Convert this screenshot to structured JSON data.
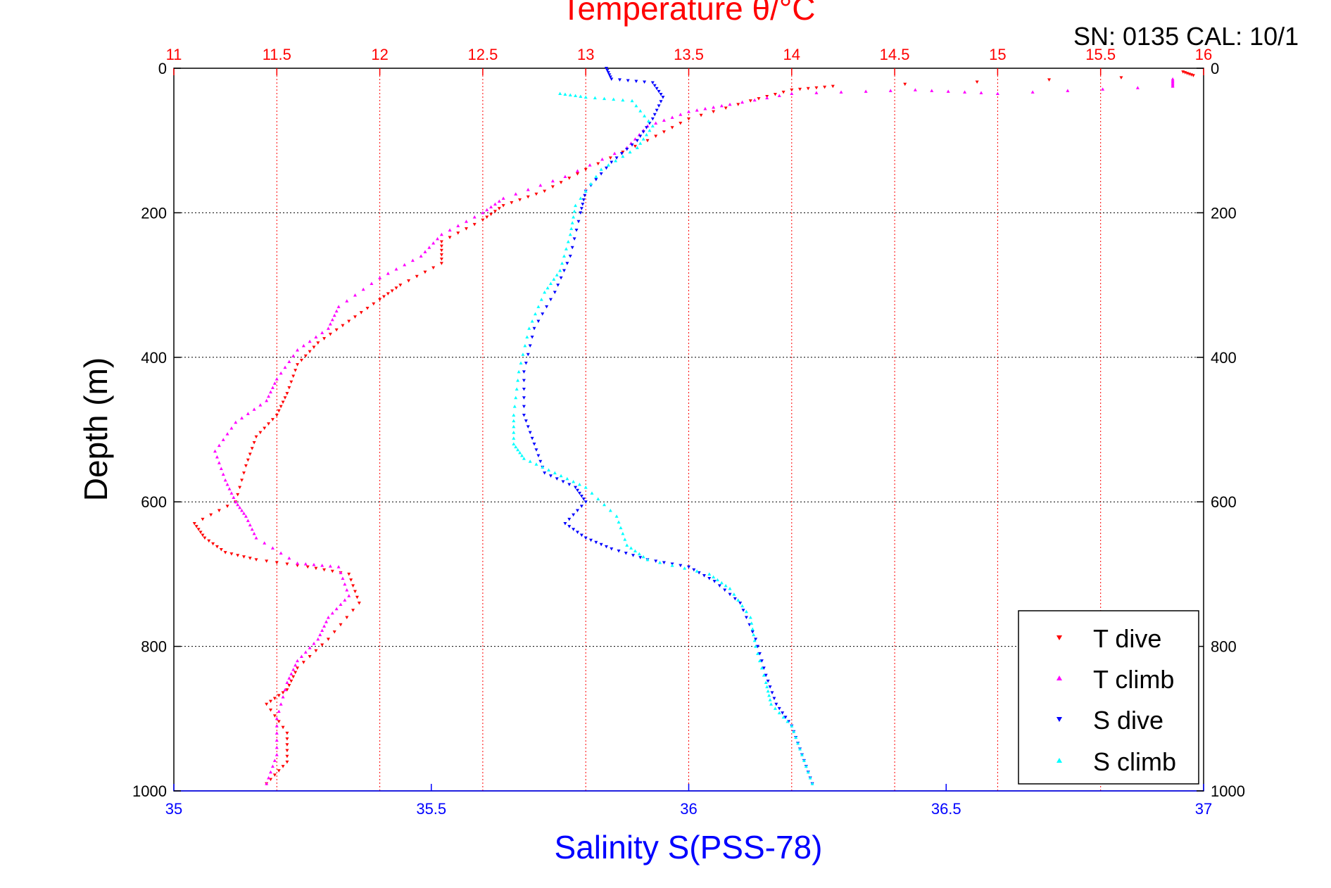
{
  "chart_data": {
    "type": "scatter",
    "title": "Temperature θ/°C",
    "header_note": "SN: 0135  CAL: 10/1",
    "xlabel": "Salinity S(PSS-78)",
    "ylabel": "Depth (m)",
    "x_salinity_range": [
      35,
      37
    ],
    "x_temperature_range": [
      11,
      16
    ],
    "depth_range": [
      0,
      1000
    ],
    "y_reversed": true,
    "grid": true,
    "legend_position": "bottom-right",
    "colors": {
      "temperature_axis": "#ff0000",
      "salinity_axis": "#0000ff",
      "t_dive": "#ff0000",
      "t_climb": "#ff00ff",
      "s_dive": "#0000ff",
      "s_climb": "#00ffff"
    },
    "x_bottom_ticks": [
      "35",
      "35.5",
      "36",
      "36.5",
      "37"
    ],
    "x_top_ticks": [
      "11",
      "11.5",
      "12",
      "12.5",
      "13",
      "13.5",
      "14",
      "14.5",
      "15",
      "15.5",
      "16"
    ],
    "y_ticks": [
      "0",
      "200",
      "400",
      "600",
      "800",
      "1000"
    ],
    "series": [
      {
        "name": "T dive",
        "axis": "temperature",
        "marker": "triangle-down",
        "points": [
          [
            15.9,
            5
          ],
          [
            15.95,
            10
          ],
          [
            14.2,
            25
          ],
          [
            14.0,
            30
          ],
          [
            13.8,
            45
          ],
          [
            13.5,
            70
          ],
          [
            13.3,
            100
          ],
          [
            13.0,
            140
          ],
          [
            12.8,
            170
          ],
          [
            12.6,
            190
          ],
          [
            12.5,
            210
          ],
          [
            12.3,
            240
          ],
          [
            12.3,
            270
          ],
          [
            12.1,
            300
          ],
          [
            12.0,
            320
          ],
          [
            11.85,
            350
          ],
          [
            11.7,
            380
          ],
          [
            11.6,
            410
          ],
          [
            11.55,
            450
          ],
          [
            11.5,
            480
          ],
          [
            11.4,
            510
          ],
          [
            11.35,
            550
          ],
          [
            11.3,
            600
          ],
          [
            11.1,
            630
          ],
          [
            11.15,
            650
          ],
          [
            11.25,
            670
          ],
          [
            11.4,
            680
          ],
          [
            11.65,
            690
          ],
          [
            11.85,
            700
          ],
          [
            11.9,
            740
          ],
          [
            11.75,
            790
          ],
          [
            11.6,
            830
          ],
          [
            11.55,
            860
          ],
          [
            11.45,
            880
          ],
          [
            11.55,
            920
          ],
          [
            11.55,
            960
          ],
          [
            11.45,
            990
          ]
        ]
      },
      {
        "name": "T climb",
        "axis": "temperature",
        "marker": "triangle-up",
        "points": [
          [
            15.85,
            15
          ],
          [
            15.85,
            25
          ],
          [
            15.0,
            35
          ],
          [
            14.6,
            30
          ],
          [
            14.0,
            35
          ],
          [
            13.7,
            50
          ],
          [
            13.5,
            60
          ],
          [
            13.3,
            80
          ],
          [
            13.2,
            110
          ],
          [
            12.9,
            150
          ],
          [
            12.6,
            180
          ],
          [
            12.5,
            200
          ],
          [
            12.3,
            230
          ],
          [
            12.2,
            260
          ],
          [
            12.0,
            290
          ],
          [
            11.8,
            330
          ],
          [
            11.75,
            360
          ],
          [
            11.6,
            390
          ],
          [
            11.5,
            430
          ],
          [
            11.45,
            460
          ],
          [
            11.3,
            490
          ],
          [
            11.2,
            530
          ],
          [
            11.25,
            570
          ],
          [
            11.3,
            600
          ],
          [
            11.35,
            620
          ],
          [
            11.4,
            650
          ],
          [
            11.6,
            685
          ],
          [
            11.8,
            690
          ],
          [
            11.85,
            730
          ],
          [
            11.75,
            760
          ],
          [
            11.7,
            790
          ],
          [
            11.6,
            820
          ],
          [
            11.55,
            850
          ],
          [
            11.5,
            900
          ],
          [
            11.5,
            950
          ],
          [
            11.45,
            990
          ]
        ]
      },
      {
        "name": "S dive",
        "axis": "salinity",
        "marker": "triangle-down",
        "points": [
          [
            35.84,
            0
          ],
          [
            35.85,
            15
          ],
          [
            35.93,
            20
          ],
          [
            35.95,
            40
          ],
          [
            35.93,
            70
          ],
          [
            35.9,
            100
          ],
          [
            35.85,
            130
          ],
          [
            35.8,
            170
          ],
          [
            35.79,
            200
          ],
          [
            35.77,
            260
          ],
          [
            35.74,
            310
          ],
          [
            35.7,
            360
          ],
          [
            35.68,
            420
          ],
          [
            35.68,
            480
          ],
          [
            35.7,
            520
          ],
          [
            35.72,
            560
          ],
          [
            35.78,
            580
          ],
          [
            35.8,
            600
          ],
          [
            35.76,
            630
          ],
          [
            35.8,
            650
          ],
          [
            35.85,
            665
          ],
          [
            35.92,
            680
          ],
          [
            36.0,
            690
          ],
          [
            36.05,
            710
          ],
          [
            36.1,
            740
          ],
          [
            36.13,
            790
          ],
          [
            36.15,
            840
          ],
          [
            36.17,
            880
          ],
          [
            36.2,
            910
          ],
          [
            36.22,
            950
          ],
          [
            36.24,
            990
          ]
        ]
      },
      {
        "name": "S climb",
        "axis": "salinity",
        "marker": "triangle-up",
        "points": [
          [
            35.75,
            35
          ],
          [
            35.8,
            40
          ],
          [
            35.89,
            45
          ],
          [
            35.93,
            80
          ],
          [
            35.9,
            110
          ],
          [
            35.83,
            140
          ],
          [
            35.78,
            190
          ],
          [
            35.77,
            230
          ],
          [
            35.75,
            280
          ],
          [
            35.72,
            310
          ],
          [
            35.69,
            360
          ],
          [
            35.67,
            420
          ],
          [
            35.66,
            480
          ],
          [
            35.66,
            520
          ],
          [
            35.68,
            540
          ],
          [
            35.74,
            560
          ],
          [
            35.8,
            580
          ],
          [
            35.86,
            620
          ],
          [
            35.88,
            660
          ],
          [
            35.92,
            680
          ],
          [
            36.04,
            700
          ],
          [
            36.08,
            720
          ],
          [
            36.12,
            760
          ],
          [
            36.13,
            800
          ],
          [
            36.15,
            850
          ],
          [
            36.16,
            880
          ],
          [
            36.2,
            910
          ],
          [
            36.22,
            950
          ],
          [
            36.24,
            990
          ]
        ]
      }
    ]
  }
}
